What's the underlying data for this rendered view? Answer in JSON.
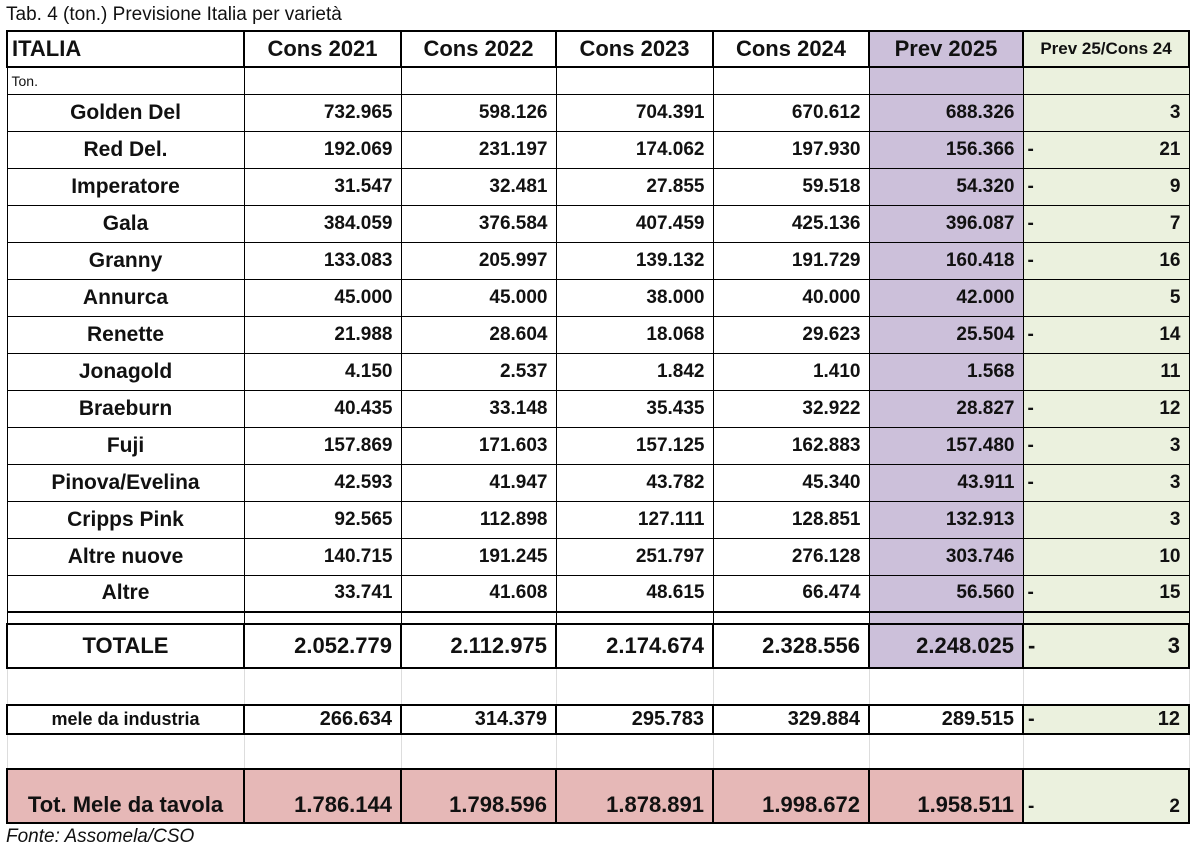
{
  "title": "Tab. 4 (ton.) Previsione Italia per varietà",
  "source": "Fonte: Assomela/CSO",
  "colors": {
    "prev_column": "#ccc0da",
    "ratio_column": "#ebf1de",
    "table_total": "#e6b8b7"
  },
  "headers": [
    "ITALIA",
    "Cons 2021",
    "Cons 2022",
    "Cons 2023",
    "Cons 2024",
    "Prev 2025",
    "Prev 25/Cons 24"
  ],
  "unit_label": "Ton.",
  "rows": [
    {
      "name": "Golden Del",
      "values": [
        "732.965",
        "598.126",
        "704.391",
        "670.612",
        "688.326"
      ],
      "sign": "",
      "change": "3"
    },
    {
      "name": "Red Del.",
      "values": [
        "192.069",
        "231.197",
        "174.062",
        "197.930",
        "156.366"
      ],
      "sign": "-",
      "change": "21"
    },
    {
      "name": "Imperatore",
      "values": [
        "31.547",
        "32.481",
        "27.855",
        "59.518",
        "54.320"
      ],
      "sign": "-",
      "change": "9"
    },
    {
      "name": "Gala",
      "values": [
        "384.059",
        "376.584",
        "407.459",
        "425.136",
        "396.087"
      ],
      "sign": "-",
      "change": "7"
    },
    {
      "name": "Granny",
      "values": [
        "133.083",
        "205.997",
        "139.132",
        "191.729",
        "160.418"
      ],
      "sign": "-",
      "change": "16"
    },
    {
      "name": "Annurca",
      "values": [
        "45.000",
        "45.000",
        "38.000",
        "40.000",
        "42.000"
      ],
      "sign": "",
      "change": "5"
    },
    {
      "name": "Renette",
      "values": [
        "21.988",
        "28.604",
        "18.068",
        "29.623",
        "25.504"
      ],
      "sign": "-",
      "change": "14"
    },
    {
      "name": "Jonagold",
      "values": [
        "4.150",
        "2.537",
        "1.842",
        "1.410",
        "1.568"
      ],
      "sign": "",
      "change": "11"
    },
    {
      "name": "Braeburn",
      "values": [
        "40.435",
        "33.148",
        "35.435",
        "32.922",
        "28.827"
      ],
      "sign": "-",
      "change": "12"
    },
    {
      "name": "Fuji",
      "values": [
        "157.869",
        "171.603",
        "157.125",
        "162.883",
        "157.480"
      ],
      "sign": "-",
      "change": "3"
    },
    {
      "name": "Pinova/Evelina",
      "values": [
        "42.593",
        "41.947",
        "43.782",
        "45.340",
        "43.911"
      ],
      "sign": "-",
      "change": "3"
    },
    {
      "name": "Cripps Pink",
      "values": [
        "92.565",
        "112.898",
        "127.111",
        "128.851",
        "132.913"
      ],
      "sign": "",
      "change": "3"
    },
    {
      "name": "Altre nuove",
      "values": [
        "140.715",
        "191.245",
        "251.797",
        "276.128",
        "303.746"
      ],
      "sign": "",
      "change": "10"
    },
    {
      "name": "Altre",
      "values": [
        "33.741",
        "41.608",
        "48.615",
        "66.474",
        "56.560"
      ],
      "sign": "-",
      "change": "15"
    }
  ],
  "total": {
    "name": "TOTALE",
    "values": [
      "2.052.779",
      "2.112.975",
      "2.174.674",
      "2.328.556",
      "2.248.025"
    ],
    "sign": "-",
    "change": "3"
  },
  "industry": {
    "name": "mele da industria",
    "values": [
      "266.634",
      "314.379",
      "295.783",
      "329.884",
      "289.515"
    ],
    "sign": "-",
    "change": "12"
  },
  "table_apples": {
    "name": "Tot. Mele da tavola",
    "values": [
      "1.786.144",
      "1.798.596",
      "1.878.891",
      "1.998.672",
      "1.958.511"
    ],
    "sign": "-",
    "change": "2"
  }
}
